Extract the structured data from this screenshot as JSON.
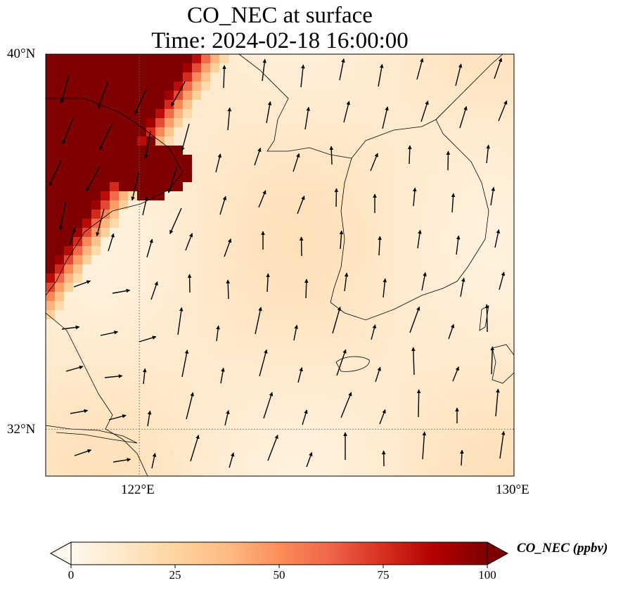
{
  "title": {
    "line1": "CO_NEC at surface",
    "line2": "Time: 2024-02-18 16:00:00"
  },
  "axes": {
    "lat_ticks": [
      {
        "lat": 40,
        "label": "40°N"
      },
      {
        "lat": 32,
        "label": "32°N"
      }
    ],
    "lon_ticks": [
      {
        "lon": 122,
        "label": "122°E"
      },
      {
        "lon": 130,
        "label": "130°E"
      }
    ],
    "extent": {
      "lon_min": 120,
      "lon_max": 130,
      "lat_min": 31,
      "lat_max": 40
    }
  },
  "colorbar": {
    "label": "CO_NEC (ppbv)",
    "min": 0,
    "max": 100,
    "ticks": [
      {
        "value": 0,
        "label": "0"
      },
      {
        "value": 25,
        "label": "25"
      },
      {
        "value": 50,
        "label": "50"
      },
      {
        "value": 75,
        "label": "75"
      },
      {
        "value": 100,
        "label": "100"
      }
    ],
    "extend": "both",
    "colormap": "OrRd",
    "stops": [
      "#fff7ec",
      "#fee8c8",
      "#fdd49e",
      "#fdbb84",
      "#fc8d59",
      "#ef6548",
      "#d7301f",
      "#b30000",
      "#7f0000"
    ]
  },
  "chart_data": {
    "type": "heatmap",
    "variable": "CO_NEC",
    "units": "ppbv",
    "level": "surface",
    "time": "2024-02-18 16:00:00",
    "value_range": [
      0,
      100
    ],
    "plume": {
      "region": "northwest (Shandong / Bohai coast)",
      "max_value": 100
    },
    "background_value_approx": 8,
    "wind_vectors": "northerly to southward flow near coast, southerly flow over Yellow Sea and Korea"
  }
}
